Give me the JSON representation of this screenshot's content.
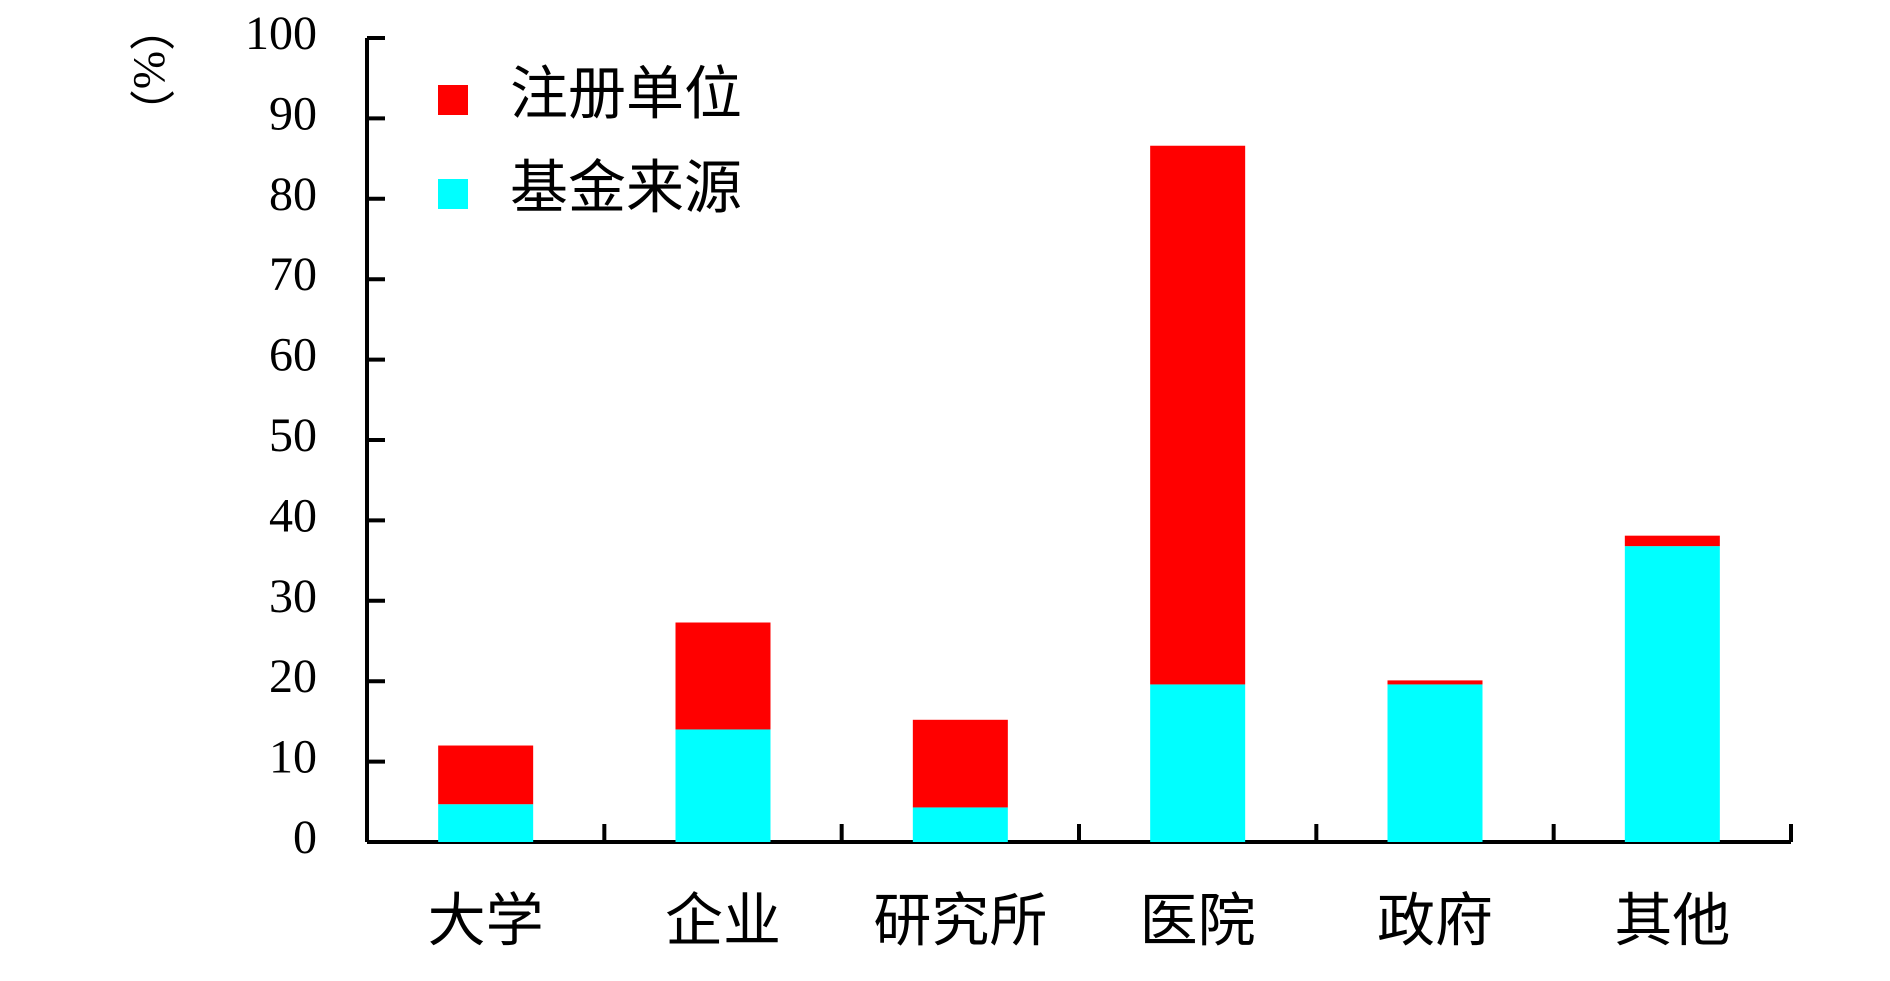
{
  "chart_data": {
    "type": "stacked_bar",
    "y_label": "（%）",
    "categories": [
      "大学",
      "企业",
      "研究所",
      "医院",
      "政府",
      "其他"
    ],
    "series": [
      {
        "name": "注册单位",
        "color": "#ff0000",
        "values": [
          7.3,
          13.3,
          10.9,
          67.0,
          0.5,
          1.3
        ]
      },
      {
        "name": "基金来源",
        "color": "#00ffff",
        "values": [
          4.7,
          14.0,
          4.3,
          19.6,
          19.6,
          36.8
        ]
      }
    ],
    "ylim": [
      0,
      100
    ],
    "yticks": [
      0,
      10,
      20,
      30,
      40,
      50,
      60,
      70,
      80,
      90,
      100
    ],
    "legend": "upper left",
    "grid": false
  }
}
